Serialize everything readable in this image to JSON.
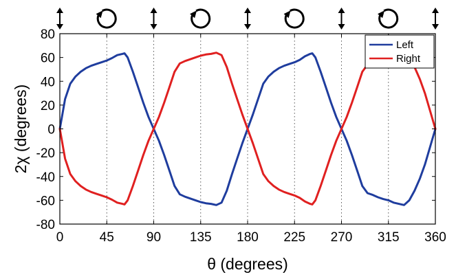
{
  "chart_data": {
    "type": "line",
    "xlabel": "θ (degrees)",
    "ylabel": "2χ (degrees)",
    "xlim": [
      0,
      360
    ],
    "ylim": [
      -80,
      80
    ],
    "xticks": [
      "0",
      "45",
      "90",
      "135",
      "180",
      "225",
      "270",
      "315",
      "360"
    ],
    "yticks": [
      "-80",
      "-60",
      "-40",
      "-20",
      "0",
      "20",
      "40",
      "60",
      "80"
    ],
    "vertical_guides_x": [
      45,
      90,
      135,
      180,
      225,
      270,
      315
    ],
    "legend": {
      "placement": "top-right"
    },
    "top_markers": [
      {
        "x": 0,
        "icon": "double-arrow-icon"
      },
      {
        "x": 45,
        "icon": "circular-arrow-icon"
      },
      {
        "x": 90,
        "icon": "double-arrow-icon"
      },
      {
        "x": 135,
        "icon": "circular-arrow-icon"
      },
      {
        "x": 180,
        "icon": "double-arrow-icon"
      },
      {
        "x": 225,
        "icon": "circular-arrow-icon"
      },
      {
        "x": 270,
        "icon": "double-arrow-icon"
      },
      {
        "x": 315,
        "icon": "circular-arrow-icon"
      },
      {
        "x": 360,
        "icon": "double-arrow-icon"
      }
    ],
    "series": [
      {
        "name": "Left",
        "color": "#1f3d9e",
        "points": [
          [
            0,
            0
          ],
          [
            5,
            25
          ],
          [
            10,
            38
          ],
          [
            15,
            44
          ],
          [
            20,
            48
          ],
          [
            25,
            51
          ],
          [
            30,
            53
          ],
          [
            35,
            54.5
          ],
          [
            40,
            56
          ],
          [
            45,
            57.5
          ],
          [
            50,
            59.5
          ],
          [
            55,
            62
          ],
          [
            60,
            63
          ],
          [
            62,
            63.5
          ],
          [
            65,
            60
          ],
          [
            70,
            48
          ],
          [
            75,
            35
          ],
          [
            80,
            22
          ],
          [
            85,
            10
          ],
          [
            90,
            0
          ],
          [
            95,
            -10
          ],
          [
            100,
            -22
          ],
          [
            105,
            -35
          ],
          [
            110,
            -48
          ],
          [
            115,
            -55
          ],
          [
            120,
            -57
          ],
          [
            125,
            -58.5
          ],
          [
            130,
            -60
          ],
          [
            135,
            -61.5
          ],
          [
            140,
            -62.5
          ],
          [
            145,
            -63
          ],
          [
            150,
            -64
          ],
          [
            155,
            -62
          ],
          [
            160,
            -52
          ],
          [
            165,
            -38
          ],
          [
            170,
            -25
          ],
          [
            175,
            -12
          ],
          [
            180,
            0
          ],
          [
            185,
            12
          ],
          [
            190,
            25
          ],
          [
            195,
            38
          ],
          [
            200,
            44
          ],
          [
            205,
            48
          ],
          [
            210,
            51
          ],
          [
            215,
            53
          ],
          [
            220,
            54.5
          ],
          [
            225,
            56
          ],
          [
            230,
            58
          ],
          [
            235,
            61
          ],
          [
            240,
            63
          ],
          [
            242,
            63.5
          ],
          [
            245,
            60
          ],
          [
            250,
            48
          ],
          [
            255,
            35
          ],
          [
            260,
            22
          ],
          [
            265,
            10
          ],
          [
            270,
            0
          ],
          [
            275,
            -10
          ],
          [
            280,
            -22
          ],
          [
            285,
            -35
          ],
          [
            290,
            -48
          ],
          [
            295,
            -54
          ],
          [
            300,
            -55.5
          ],
          [
            305,
            -57.5
          ],
          [
            310,
            -59
          ],
          [
            315,
            -60
          ],
          [
            320,
            -62
          ],
          [
            325,
            -63
          ],
          [
            330,
            -64
          ],
          [
            335,
            -60
          ],
          [
            340,
            -52
          ],
          [
            345,
            -42
          ],
          [
            350,
            -30
          ],
          [
            355,
            -15
          ],
          [
            360,
            0
          ]
        ]
      },
      {
        "name": "Right",
        "color": "#e02020",
        "points": [
          [
            0,
            0
          ],
          [
            5,
            -25
          ],
          [
            10,
            -38
          ],
          [
            15,
            -44
          ],
          [
            20,
            -48
          ],
          [
            25,
            -51
          ],
          [
            30,
            -53
          ],
          [
            35,
            -54.5
          ],
          [
            40,
            -56
          ],
          [
            45,
            -57.5
          ],
          [
            50,
            -59.5
          ],
          [
            55,
            -62
          ],
          [
            60,
            -63
          ],
          [
            62,
            -63.5
          ],
          [
            65,
            -60
          ],
          [
            70,
            -48
          ],
          [
            75,
            -35
          ],
          [
            80,
            -22
          ],
          [
            85,
            -10
          ],
          [
            90,
            0
          ],
          [
            95,
            10
          ],
          [
            100,
            22
          ],
          [
            105,
            35
          ],
          [
            110,
            48
          ],
          [
            115,
            55
          ],
          [
            120,
            57
          ],
          [
            125,
            58.5
          ],
          [
            130,
            60
          ],
          [
            135,
            61.5
          ],
          [
            140,
            62.5
          ],
          [
            145,
            63
          ],
          [
            150,
            64
          ],
          [
            155,
            62
          ],
          [
            160,
            52
          ],
          [
            165,
            38
          ],
          [
            170,
            25
          ],
          [
            175,
            12
          ],
          [
            180,
            0
          ],
          [
            185,
            -12
          ],
          [
            190,
            -25
          ],
          [
            195,
            -38
          ],
          [
            200,
            -44
          ],
          [
            205,
            -48
          ],
          [
            210,
            -51
          ],
          [
            215,
            -53
          ],
          [
            220,
            -54.5
          ],
          [
            225,
            -56
          ],
          [
            230,
            -58
          ],
          [
            235,
            -61
          ],
          [
            240,
            -63
          ],
          [
            242,
            -63.5
          ],
          [
            245,
            -60
          ],
          [
            250,
            -48
          ],
          [
            255,
            -35
          ],
          [
            260,
            -22
          ],
          [
            265,
            -10
          ],
          [
            270,
            0
          ],
          [
            275,
            10
          ],
          [
            280,
            22
          ],
          [
            285,
            35
          ],
          [
            290,
            48
          ],
          [
            295,
            54
          ],
          [
            300,
            55.5
          ],
          [
            305,
            57.5
          ],
          [
            310,
            59
          ],
          [
            315,
            60
          ],
          [
            320,
            62
          ],
          [
            325,
            63
          ],
          [
            330,
            64
          ],
          [
            335,
            60
          ],
          [
            340,
            52
          ],
          [
            345,
            42
          ],
          [
            350,
            30
          ],
          [
            355,
            15
          ],
          [
            360,
            0
          ]
        ]
      }
    ]
  }
}
